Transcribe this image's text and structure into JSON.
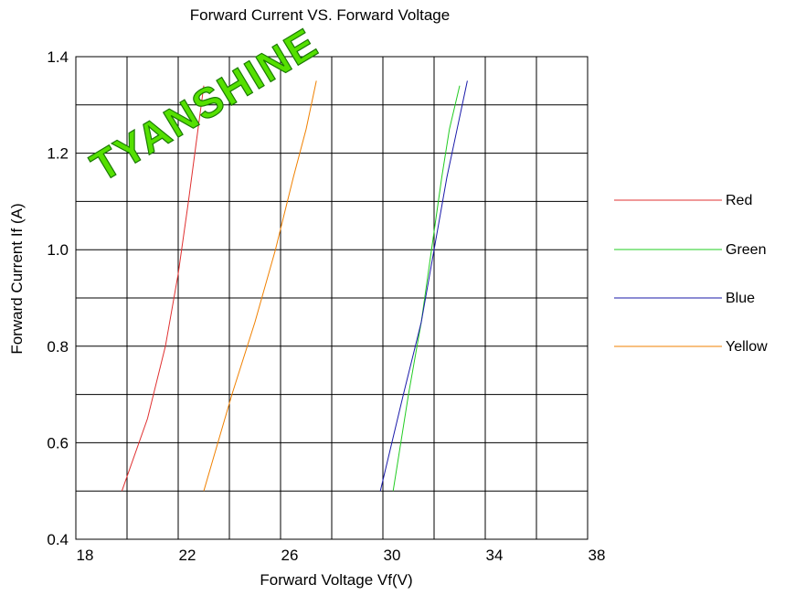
{
  "chart_data": {
    "type": "line",
    "title": "Forward Current VS. Forward Voltage",
    "xlabel": "Forward Voltage Vf(V)",
    "ylabel": "Forward Current  If (A)",
    "xlim": [
      18,
      38
    ],
    "ylim": [
      0.4,
      1.4
    ],
    "x_ticks": [
      "18",
      "22",
      "26",
      "30",
      "34",
      "38"
    ],
    "y_ticks": [
      "0.4",
      "0.6",
      "0.8",
      "1.0",
      "1.2",
      "1.4"
    ],
    "grid": true,
    "legend_position": "right",
    "series": [
      {
        "name": "Red",
        "color": "#e03030",
        "points": [
          [
            19.8,
            0.5
          ],
          [
            20.8,
            0.65
          ],
          [
            21.5,
            0.8
          ],
          [
            22.0,
            0.95
          ],
          [
            22.4,
            1.1
          ],
          [
            22.7,
            1.22
          ],
          [
            23.0,
            1.34
          ]
        ]
      },
      {
        "name": "Green",
        "color": "#22cc22",
        "points": [
          [
            30.4,
            0.5
          ],
          [
            31.0,
            0.7
          ],
          [
            31.5,
            0.85
          ],
          [
            31.9,
            1.0
          ],
          [
            32.3,
            1.15
          ],
          [
            32.6,
            1.25
          ],
          [
            33.0,
            1.34
          ]
        ]
      },
      {
        "name": "Blue",
        "color": "#1a1aaa",
        "points": [
          [
            29.9,
            0.5
          ],
          [
            30.8,
            0.7
          ],
          [
            31.5,
            0.85
          ],
          [
            32.0,
            1.0
          ],
          [
            32.5,
            1.15
          ],
          [
            32.9,
            1.25
          ],
          [
            33.3,
            1.35
          ]
        ]
      },
      {
        "name": "Yellow",
        "color": "#f08000",
        "points": [
          [
            23.0,
            0.5
          ],
          [
            24.1,
            0.7
          ],
          [
            25.0,
            0.85
          ],
          [
            25.8,
            1.0
          ],
          [
            26.5,
            1.15
          ],
          [
            27.0,
            1.25
          ],
          [
            27.4,
            1.35
          ]
        ]
      }
    ],
    "watermark": "TYANSHINE"
  }
}
